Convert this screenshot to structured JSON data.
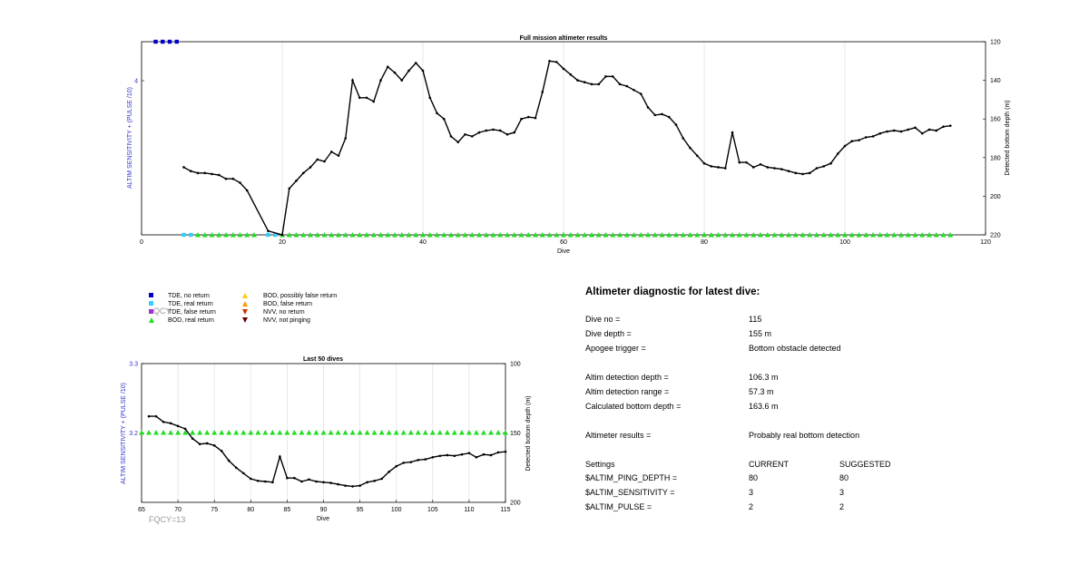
{
  "chart_data": [
    {
      "type": "line",
      "title": "Full mission altimeter results",
      "xlabel": "Dive",
      "ylabel_left": "ALTIM SENSITIVITY + (PULSE /10)",
      "ylabel_right": "Detected bottom depth (m)",
      "xlim": [
        0,
        120
      ],
      "xticks": [
        0,
        20,
        40,
        60,
        80,
        100,
        120
      ],
      "ylim_right": [
        220,
        120
      ],
      "yticks_right": [
        120,
        140,
        160,
        180,
        200,
        220
      ],
      "yticks_left": [
        4
      ],
      "grid": true,
      "series": [
        {
          "name": "",
          "color": "#000000",
          "x": [
            6,
            7,
            8,
            9,
            10,
            11,
            12,
            13,
            14,
            15,
            18,
            20,
            21,
            22,
            23,
            24,
            25,
            26,
            27,
            28,
            29,
            30,
            31,
            32,
            33,
            34,
            35,
            36,
            37,
            38,
            39,
            40,
            41,
            42,
            43,
            44,
            45,
            46,
            47,
            48,
            49,
            50,
            51,
            52,
            53,
            54,
            55,
            56,
            57,
            58,
            59,
            60,
            61,
            62,
            63,
            64,
            65,
            66,
            67,
            68,
            69,
            70,
            71,
            72,
            73,
            74,
            75,
            76,
            77,
            78,
            79,
            80,
            81,
            82,
            83,
            84,
            85,
            86,
            87,
            88,
            89,
            90,
            91,
            92,
            93,
            94,
            95,
            96,
            97,
            98,
            99,
            100,
            101,
            102,
            103,
            104,
            105,
            106,
            107,
            108,
            109,
            110,
            111,
            112,
            113,
            114,
            115
          ],
          "y": [
            185,
            187,
            188,
            188,
            188.5,
            189,
            191,
            191,
            193,
            197,
            218,
            220,
            196,
            192,
            188,
            185,
            181,
            182,
            177,
            179,
            170,
            140,
            149,
            149,
            151,
            140,
            133,
            136,
            140,
            135,
            131,
            135,
            149,
            157,
            160,
            169,
            172,
            168,
            169,
            167,
            166,
            165.5,
            166,
            168,
            167,
            160,
            159,
            159.5,
            146,
            130,
            130.5,
            134,
            137,
            140,
            141,
            142,
            142,
            138,
            138,
            142,
            143,
            145,
            147,
            154,
            158,
            157.5,
            159,
            163,
            170,
            175,
            179,
            183,
            184.5,
            185,
            185.5,
            167,
            182.5,
            182.5,
            185,
            183.5,
            185,
            185.5,
            186,
            187,
            188,
            188.5,
            188,
            185.5,
            184.5,
            183,
            178,
            174,
            171.5,
            171,
            169.5,
            169,
            167.5,
            166.5,
            166,
            166.5,
            165.5,
            164.5,
            167.5,
            165.5,
            166,
            164,
            163.5
          ]
        }
      ],
      "markers": {
        "tde_no_return": [
          2,
          3,
          4,
          5
        ],
        "tde_real_return": [
          6,
          7,
          18,
          19
        ],
        "bod_real_return": [
          8,
          9,
          10,
          11,
          12,
          13,
          14,
          15,
          16,
          20,
          21,
          22,
          23,
          24,
          25,
          26,
          27,
          28,
          29,
          30,
          31,
          32,
          33,
          34,
          35,
          36,
          37,
          38,
          39,
          40,
          41,
          42,
          43,
          44,
          45,
          46,
          47,
          48,
          49,
          50,
          51,
          52,
          53,
          54,
          55,
          56,
          57,
          58,
          59,
          60,
          61,
          62,
          63,
          64,
          65,
          66,
          67,
          68,
          69,
          70,
          71,
          72,
          73,
          74,
          75,
          76,
          77,
          78,
          79,
          80,
          81,
          82,
          83,
          84,
          85,
          86,
          87,
          88,
          89,
          90,
          91,
          92,
          93,
          94,
          95,
          96,
          97,
          98,
          99,
          100,
          101,
          102,
          103,
          104,
          105,
          106,
          107,
          108,
          109,
          110,
          111,
          112,
          113,
          114,
          115
        ]
      }
    },
    {
      "type": "line",
      "title": "Last 50 dives",
      "xlabel": "Dive",
      "ylabel_left": "ALTIM SENSITIVITY + (PULSE /10)",
      "ylabel_right": "Detected bottom depth (m)",
      "xlim": [
        65,
        115
      ],
      "xticks": [
        65,
        70,
        75,
        80,
        85,
        90,
        95,
        100,
        105,
        110,
        115
      ],
      "ylim_left": [
        3.1,
        3.3
      ],
      "yticks_left": [
        3.2,
        3.3
      ],
      "ylim_right": [
        200,
        100
      ],
      "yticks_right": [
        100,
        150,
        200
      ],
      "grid": true,
      "series": [
        {
          "name": "",
          "color": "#000000",
          "x": [
            66,
            67,
            68,
            69,
            70,
            71,
            72,
            73,
            74,
            75,
            76,
            77,
            78,
            79,
            80,
            81,
            82,
            83,
            84,
            85,
            86,
            87,
            88,
            89,
            90,
            91,
            92,
            93,
            94,
            95,
            96,
            97,
            98,
            99,
            100,
            101,
            102,
            103,
            104,
            105,
            106,
            107,
            108,
            109,
            110,
            111,
            112,
            113,
            114,
            115
          ],
          "y": [
            138,
            138,
            142,
            143,
            145,
            147,
            154,
            158,
            157.5,
            159,
            163,
            170,
            175,
            179,
            183,
            184.5,
            185,
            185.5,
            167,
            182.5,
            182.5,
            185,
            183.5,
            185,
            185.5,
            186,
            187,
            188,
            188.5,
            188,
            185.5,
            184.5,
            183,
            178,
            174,
            171.5,
            171,
            169.5,
            169,
            167.5,
            166.5,
            166,
            166.5,
            165.5,
            164.5,
            167.5,
            165.5,
            166,
            164,
            163.5
          ]
        }
      ],
      "markers": {
        "bod_real_return": [
          65,
          66,
          67,
          68,
          69,
          70,
          71,
          72,
          73,
          74,
          75,
          76,
          77,
          78,
          79,
          80,
          81,
          82,
          83,
          84,
          85,
          86,
          87,
          88,
          89,
          90,
          91,
          92,
          93,
          94,
          95,
          96,
          97,
          98,
          99,
          100,
          101,
          102,
          103,
          104,
          105,
          106,
          107,
          108,
          109,
          110,
          111,
          112,
          113,
          114,
          115
        ]
      }
    }
  ],
  "colors": {
    "tde_no_return": "#0000cc",
    "tde_real_return": "#33ccff",
    "tde_false_return": "#9933cc",
    "bod_real_return": "#22dd22",
    "bod_possibly_false": "#ffcc00",
    "bod_false_return": "#ff9900",
    "nvv_no_return": "#cc3300",
    "nvv_not_pinging": "#660000",
    "left_axis_label": "#3333cc",
    "fqcy_text": "#999999"
  },
  "legend": {
    "items": [
      {
        "label": "TDE, no return",
        "shape": "square",
        "color": "#0000cc"
      },
      {
        "label": "TDE, real return",
        "shape": "square",
        "color": "#33ccff"
      },
      {
        "label": "TDE, false return",
        "shape": "square",
        "color": "#9933cc"
      },
      {
        "label": "BOD, real return",
        "shape": "triangle-up",
        "color": "#22dd22"
      },
      {
        "label": "BOD, possibly false return",
        "shape": "triangle-up",
        "color": "#ffcc00"
      },
      {
        "label": "BOD, false return",
        "shape": "triangle-up",
        "color": "#ff9900"
      },
      {
        "label": "NVV, no return",
        "shape": "triangle-down",
        "color": "#cc3300"
      },
      {
        "label": "NVV, not pinging",
        "shape": "triangle-down",
        "color": "#660000"
      }
    ],
    "overlay_text": "QCY"
  },
  "fqcy": "FQCY=13",
  "diagnostic": {
    "title": "Altimeter diagnostic for latest dive:",
    "dive_no_label": "Dive no =",
    "dive_no": "115",
    "dive_depth_label": "Dive depth =",
    "dive_depth": "155 m",
    "apogee_label": "Apogee trigger =",
    "apogee": "Bottom obstacle detected",
    "altim_depth_label": "Altim detection depth =",
    "altim_depth": "106.3 m",
    "altim_range_label": "Altim detection range =",
    "altim_range": "57.3 m",
    "calc_bottom_label": "Calculated bottom depth =",
    "calc_bottom": "163.6 m",
    "results_label": "Altimeter results =",
    "results": "Probably real bottom detection",
    "settings_header": "Settings",
    "current_header": "CURRENT",
    "suggested_header": "SUGGESTED",
    "settings": [
      {
        "name": "$ALTIM_PING_DEPTH =",
        "current": "80",
        "suggested": "80"
      },
      {
        "name": "$ALTIM_SENSITIVITY =",
        "current": "3",
        "suggested": "3"
      },
      {
        "name": "$ALTIM_PULSE =",
        "current": "2",
        "suggested": "2"
      }
    ]
  }
}
